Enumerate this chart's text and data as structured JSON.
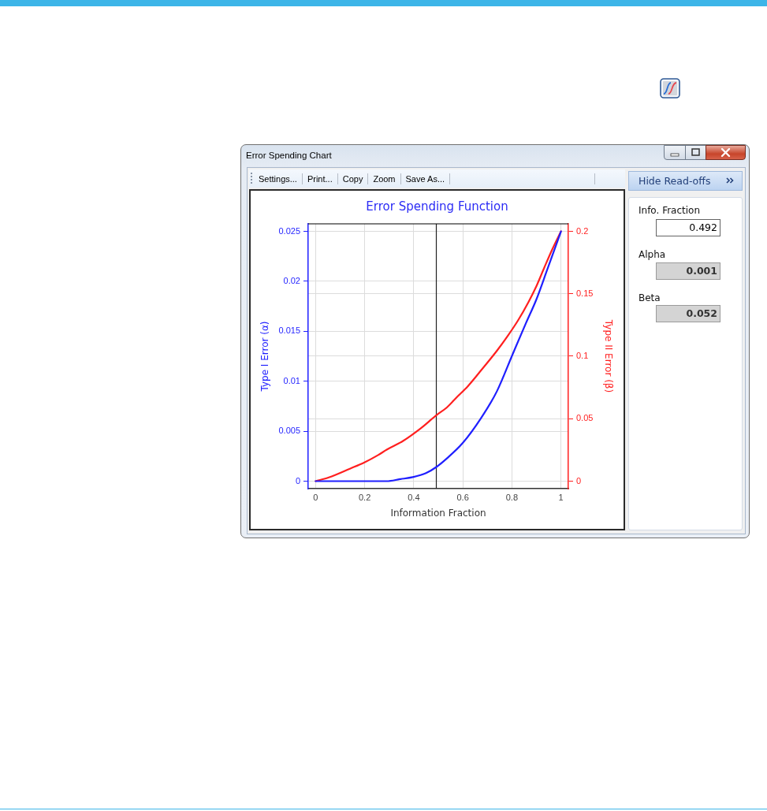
{
  "chart_data": {
    "type": "line",
    "title": "Error Spending Function",
    "xlabel": "Information Fraction",
    "ylabel": "Type I Error (α)",
    "y2label": "Type II Error (β)",
    "series": [
      {
        "color": "#1f1fff",
        "x": [
          0,
          0.1,
          0.2,
          0.29,
          0.344,
          0.396,
          0.45,
          0.491,
          0.536,
          0.599,
          0.674,
          0.739,
          0.803,
          0.857,
          0.9,
          0.943,
          1
        ],
        "values": [
          0,
          0,
          0,
          0,
          0.0002,
          0.0004,
          0.0008,
          0.0014,
          0.0023,
          0.0038,
          0.0063,
          0.009,
          0.0127,
          0.0158,
          0.0182,
          0.0211,
          0.025
        ]
      },
      {
        "color": "#ff1f1f",
        "axis": "y2",
        "x": [
          0,
          0.054,
          0.14,
          0.199,
          0.255,
          0.29,
          0.355,
          0.43,
          0.491,
          0.535,
          0.577,
          0.62,
          0.674,
          0.739,
          0.782,
          0.825,
          0.868,
          0.9,
          0.932,
          0.965,
          1
        ],
        "values": [
          0,
          0.003,
          0.01,
          0.015,
          0.0209,
          0.0252,
          0.032,
          0.0425,
          0.0526,
          0.059,
          0.0675,
          0.0759,
          0.0886,
          0.1044,
          0.116,
          0.1287,
          0.1436,
          0.1562,
          0.171,
          0.1858,
          0.2
        ]
      }
    ],
    "xlim": [
      -0.03,
      1.03
    ],
    "xticks": [
      0,
      0.2,
      0.4,
      0.6,
      0.8,
      1
    ],
    "ylim": [
      -0.00075,
      0.02575
    ],
    "yticks": [
      0,
      0.005,
      0.01,
      0.015,
      0.02,
      0.025
    ],
    "y2lim": [
      -0.006,
      0.206
    ],
    "y2ticks": [
      0,
      0.05,
      0.1,
      0.15,
      0.2
    ],
    "ref_lines": [
      {
        "axis": "x",
        "value": 0.492,
        "color": "#222222"
      }
    ],
    "grid": true,
    "marker": "none",
    "line_style": "solid",
    "annotations": [
      "Error Spending Chart",
      "Settings...",
      "Print...",
      "Copy",
      "Zoom",
      "Save As...",
      "Hide Read-offs",
      "Info. Fraction",
      "0.492",
      "Alpha",
      "0.001",
      "Beta",
      "0.052"
    ]
  }
}
